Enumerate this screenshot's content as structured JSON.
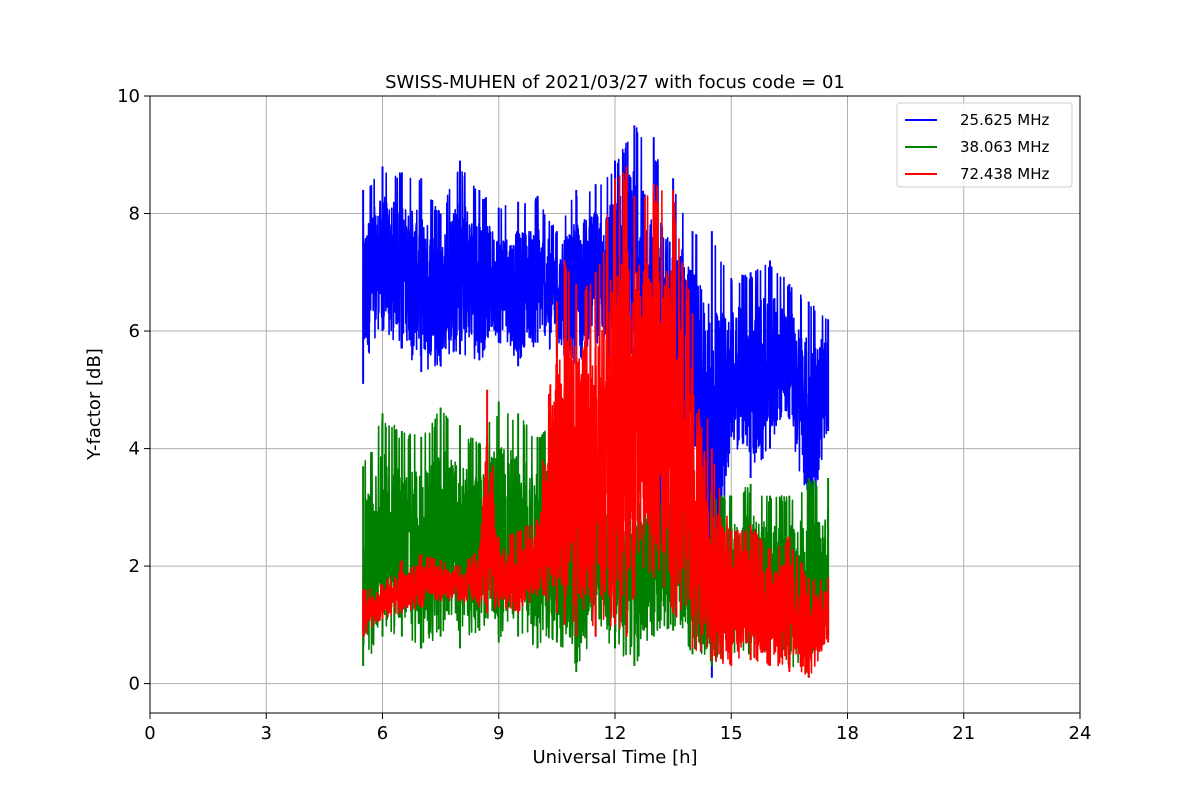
{
  "chart_data": {
    "type": "line",
    "title": "SWISS-MUHEN of 2021/03/27 with focus code = 01",
    "xlabel": "Universal Time [h]",
    "ylabel": "Y-factor [dB]",
    "xlim": [
      0,
      24
    ],
    "ylim": [
      -0.5,
      10
    ],
    "xticks": [
      0,
      3,
      6,
      9,
      12,
      15,
      18,
      21,
      24
    ],
    "yticks": [
      0,
      2,
      4,
      6,
      8,
      10
    ],
    "grid": true,
    "legend_position": "top-right",
    "series": [
      {
        "name": "25.625 MHz",
        "color": "#0000ff",
        "x": [
          5.5,
          6.0,
          6.5,
          7.0,
          7.5,
          8.0,
          8.5,
          9.0,
          9.5,
          10.0,
          10.5,
          11.0,
          11.5,
          12.0,
          12.5,
          13.0,
          13.5,
          14.0,
          14.5,
          15.0,
          15.5,
          16.0,
          16.5,
          17.0,
          17.5
        ],
        "min": [
          5.1,
          6.0,
          5.7,
          5.3,
          5.4,
          5.6,
          5.5,
          5.8,
          5.4,
          5.8,
          5.6,
          5.4,
          5.8,
          5.2,
          5.6,
          1.5,
          3.5,
          4.0,
          0.1,
          4.2,
          3.5,
          4.0,
          4.5,
          2.7,
          4.3
        ],
        "max": [
          8.4,
          8.8,
          8.7,
          8.6,
          8.0,
          8.9,
          8.4,
          8.1,
          8.2,
          8.3,
          7.7,
          8.4,
          8.5,
          8.9,
          9.5,
          9.3,
          8.6,
          7.7,
          7.7,
          6.9,
          7.0,
          7.2,
          6.8,
          6.5,
          6.2
        ]
      },
      {
        "name": "38.063 MHz",
        "color": "#008000",
        "x": [
          5.5,
          6.0,
          6.5,
          7.0,
          7.5,
          8.0,
          8.5,
          9.0,
          9.5,
          10.0,
          10.5,
          11.0,
          11.5,
          12.0,
          12.5,
          13.0,
          13.5,
          14.0,
          14.5,
          15.0,
          15.5,
          16.0,
          16.5,
          17.0,
          17.5
        ],
        "min": [
          0.3,
          0.8,
          0.8,
          0.6,
          0.8,
          0.6,
          0.9,
          0.7,
          0.8,
          0.6,
          0.7,
          0.2,
          0.8,
          0.6,
          0.3,
          0.8,
          0.9,
          0.5,
          0.3,
          0.5,
          0.4,
          0.5,
          0.3,
          0.1,
          0.8
        ],
        "max": [
          3.7,
          4.6,
          4.3,
          4.2,
          4.7,
          4.4,
          4.1,
          4.8,
          4.6,
          4.2,
          4.5,
          4.0,
          3.7,
          3.3,
          3.7,
          3.9,
          3.9,
          3.5,
          3.3,
          3.2,
          3.4,
          3.2,
          3.2,
          3.5,
          3.5
        ]
      },
      {
        "name": "72.438 MHz",
        "color": "#ff0000",
        "x": [
          5.5,
          6.0,
          6.5,
          7.0,
          7.5,
          8.0,
          8.5,
          8.7,
          9.0,
          9.5,
          10.0,
          10.5,
          10.7,
          11.0,
          11.5,
          12.0,
          12.3,
          12.5,
          13.0,
          13.5,
          14.0,
          14.5,
          15.0,
          15.5,
          16.0,
          16.5,
          17.0,
          17.5
        ],
        "min": [
          0.8,
          1.1,
          1.2,
          1.3,
          1.4,
          1.4,
          1.3,
          1.2,
          1.3,
          1.2,
          1.5,
          1.2,
          1.0,
          0.8,
          0.8,
          1.0,
          0.8,
          1.5,
          1.8,
          1.2,
          0.6,
          0.4,
          0.3,
          0.4,
          0.3,
          0.2,
          0.1,
          0.7
        ],
        "max": [
          1.6,
          1.7,
          2.1,
          2.2,
          2.1,
          2.0,
          2.3,
          5.0,
          2.5,
          2.6,
          2.8,
          6.5,
          7.2,
          6.8,
          7.0,
          8.6,
          8.8,
          8.3,
          8.5,
          8.4,
          6.3,
          4.0,
          2.6,
          2.7,
          2.3,
          2.5,
          1.8,
          1.8
        ]
      }
    ]
  }
}
